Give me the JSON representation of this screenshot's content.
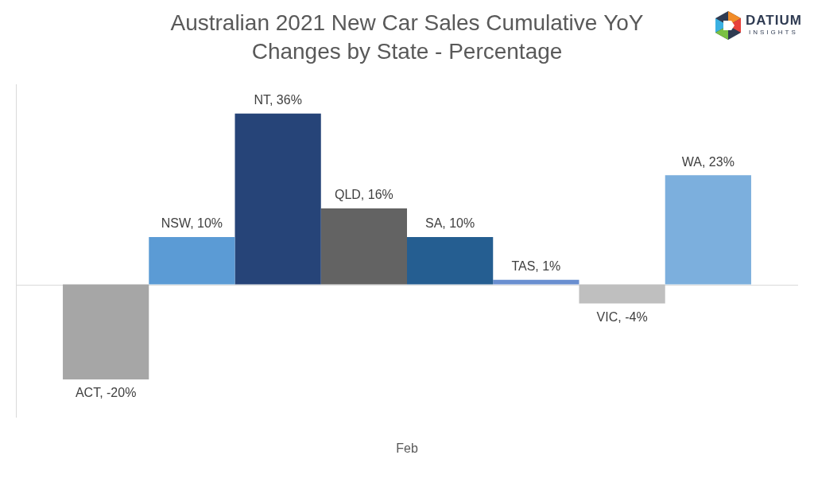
{
  "chart_data": {
    "type": "bar",
    "title": [
      "Australian 2021 New Car Sales Cumulative YoY",
      "Changes by State - Percentage"
    ],
    "annotations": [
      "DATIUM",
      "INSIGHTS"
    ],
    "categories": [
      "Feb"
    ],
    "series": [
      {
        "name": "ACT",
        "color": "#a6a6a6",
        "values": [
          -20
        ],
        "value_labels": [
          "ACT, -20%"
        ]
      },
      {
        "name": "NSW",
        "color": "#5b9bd5",
        "values": [
          10
        ],
        "value_labels": [
          "NSW, 10%"
        ]
      },
      {
        "name": "NT",
        "color": "#264478",
        "values": [
          36
        ],
        "value_labels": [
          "NT, 36%"
        ]
      },
      {
        "name": "QLD",
        "color": "#636363",
        "values": [
          16
        ],
        "value_labels": [
          "QLD, 16%"
        ]
      },
      {
        "name": "SA",
        "color": "#255e91",
        "values": [
          10
        ],
        "value_labels": [
          "SA, 10%"
        ]
      },
      {
        "name": "TAS",
        "color": "#698ed0",
        "values": [
          1
        ],
        "value_labels": [
          "TAS, 1%"
        ]
      },
      {
        "name": "VIC",
        "color": "#bfbfbf",
        "values": [
          -4
        ],
        "value_labels": [
          "VIC, -4%"
        ]
      },
      {
        "name": "WA",
        "color": "#7cafdd",
        "values": [
          23
        ],
        "value_labels": [
          "WA, 23%"
        ]
      }
    ],
    "ylim": [
      -28,
      42
    ],
    "grid": false,
    "data_labels": true,
    "tick_labels": "x"
  }
}
